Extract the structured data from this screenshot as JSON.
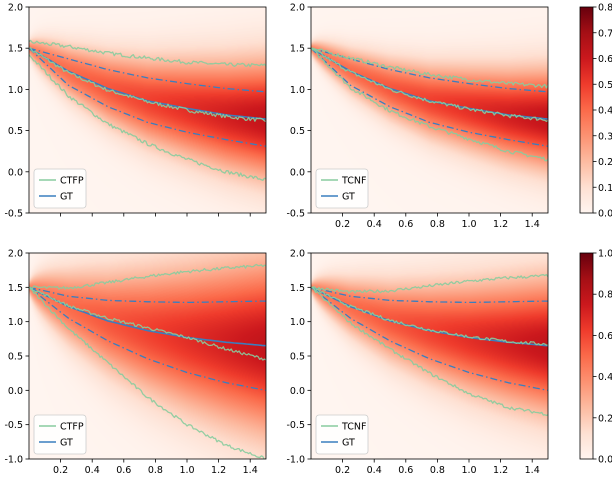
{
  "figure_title": "",
  "chart_data": [
    {
      "type": "line",
      "name": "panel-top-left",
      "xlim": [
        0.0,
        1.5
      ],
      "ylim": [
        -0.5,
        2.0
      ],
      "xticks": [
        0.2,
        0.4,
        0.6,
        0.8,
        1.0,
        1.2,
        1.4
      ],
      "yticks": [
        -0.5,
        0.0,
        0.5,
        1.0,
        1.5,
        2.0
      ],
      "show_xticklabels": false,
      "legend": {
        "position": "lower-left",
        "entries": [
          {
            "label": "CTFP",
            "color": "#88cc9e"
          },
          {
            "label": "GT",
            "color": "#3a7ebf"
          }
        ]
      },
      "density": {
        "center": "gt_mean",
        "sigma0": 0.04,
        "sigma1": 0.48,
        "vmax": 0.8
      },
      "x": [
        0.0,
        0.25,
        0.5,
        0.75,
        1.0,
        1.25,
        1.5
      ],
      "series": [
        {
          "name": "GT",
          "style": "solid",
          "color": "#3a7ebf",
          "values": [
            1.5,
            1.22,
            1.01,
            0.86,
            0.77,
            0.69,
            0.64
          ]
        },
        {
          "name": "GT upper band",
          "style": "dashdot",
          "color": "#3a7ebf",
          "values": [
            1.5,
            1.37,
            1.24,
            1.14,
            1.07,
            1.01,
            0.97
          ]
        },
        {
          "name": "GT lower band",
          "style": "dashdot",
          "color": "#3a7ebf",
          "values": [
            1.5,
            1.05,
            0.79,
            0.6,
            0.48,
            0.39,
            0.31
          ]
        },
        {
          "name": "CTFP",
          "style": "noisy",
          "color": "#88cc9e",
          "values": [
            1.5,
            1.2,
            0.99,
            0.85,
            0.75,
            0.67,
            0.62
          ]
        },
        {
          "name": "CTFP upper",
          "style": "noisy",
          "color": "#88cc9e",
          "values": [
            1.58,
            1.52,
            1.44,
            1.38,
            1.33,
            1.3,
            1.29
          ]
        },
        {
          "name": "CTFP lower",
          "style": "noisy",
          "color": "#88cc9e",
          "values": [
            1.42,
            0.92,
            0.58,
            0.34,
            0.15,
            0.0,
            -0.1
          ]
        }
      ]
    },
    {
      "type": "line",
      "name": "panel-top-right",
      "xlim": [
        0.0,
        1.5
      ],
      "ylim": [
        -0.5,
        2.0
      ],
      "xticks": [
        0.2,
        0.4,
        0.6,
        0.8,
        1.0,
        1.2,
        1.4
      ],
      "yticks": [
        -0.5,
        0.0,
        0.5,
        1.0,
        1.5,
        2.0
      ],
      "show_xticklabels": true,
      "legend": {
        "position": "lower-left",
        "entries": [
          {
            "label": "TCNF",
            "color": "#88cc9e"
          },
          {
            "label": "GT",
            "color": "#3a7ebf"
          }
        ]
      },
      "density": {
        "center": "gt_mean",
        "sigma0": 0.03,
        "sigma1": 0.4,
        "vmax": 0.8
      },
      "x": [
        0.0,
        0.25,
        0.5,
        0.75,
        1.0,
        1.25,
        1.5
      ],
      "series": [
        {
          "name": "GT",
          "style": "solid",
          "color": "#3a7ebf",
          "values": [
            1.5,
            1.22,
            1.01,
            0.86,
            0.77,
            0.69,
            0.64
          ]
        },
        {
          "name": "GT upper band",
          "style": "dashdot",
          "color": "#3a7ebf",
          "values": [
            1.5,
            1.37,
            1.24,
            1.14,
            1.07,
            1.01,
            0.97
          ]
        },
        {
          "name": "GT lower band",
          "style": "dashdot",
          "color": "#3a7ebf",
          "values": [
            1.5,
            1.05,
            0.79,
            0.6,
            0.48,
            0.39,
            0.31
          ]
        },
        {
          "name": "TCNF",
          "style": "noisy",
          "color": "#88cc9e",
          "values": [
            1.5,
            1.21,
            1.0,
            0.86,
            0.76,
            0.68,
            0.63
          ]
        },
        {
          "name": "TCNF upper",
          "style": "noisy",
          "color": "#88cc9e",
          "values": [
            1.5,
            1.38,
            1.27,
            1.18,
            1.12,
            1.07,
            1.04
          ]
        },
        {
          "name": "TCNF lower",
          "style": "noisy",
          "color": "#88cc9e",
          "values": [
            1.5,
            1.02,
            0.74,
            0.55,
            0.4,
            0.25,
            0.15
          ]
        }
      ]
    },
    {
      "type": "line",
      "name": "panel-bottom-left",
      "xlim": [
        0.0,
        1.5
      ],
      "ylim": [
        -1.0,
        2.0
      ],
      "xticks": [
        0.2,
        0.4,
        0.6,
        0.8,
        1.0,
        1.2,
        1.4
      ],
      "yticks": [
        -1.0,
        -0.5,
        0.0,
        0.5,
        1.0,
        1.5,
        2.0
      ],
      "show_xticklabels": true,
      "legend": {
        "position": "lower-left",
        "entries": [
          {
            "label": "CTFP",
            "color": "#88cc9e"
          },
          {
            "label": "GT",
            "color": "#3a7ebf"
          }
        ]
      },
      "density": {
        "center": "gt_mean",
        "sigma0": 0.02,
        "sigma1": 0.85,
        "vmax": 1.0
      },
      "x": [
        0.0,
        0.25,
        0.5,
        0.75,
        1.0,
        1.25,
        1.5
      ],
      "series": [
        {
          "name": "GT",
          "style": "solid",
          "color": "#3a7ebf",
          "values": [
            1.5,
            1.22,
            1.01,
            0.87,
            0.77,
            0.7,
            0.65
          ]
        },
        {
          "name": "GT upper band",
          "style": "dashdot",
          "color": "#3a7ebf",
          "values": [
            1.5,
            1.37,
            1.31,
            1.29,
            1.28,
            1.29,
            1.3
          ]
        },
        {
          "name": "GT lower band",
          "style": "dashdot",
          "color": "#3a7ebf",
          "values": [
            1.5,
            1.05,
            0.72,
            0.46,
            0.26,
            0.11,
            0.0
          ]
        },
        {
          "name": "CTFP",
          "style": "noisy",
          "color": "#88cc9e",
          "values": [
            1.5,
            1.23,
            1.05,
            0.91,
            0.77,
            0.6,
            0.45
          ]
        },
        {
          "name": "CTFP upper",
          "style": "noisy",
          "color": "#88cc9e",
          "values": [
            1.5,
            1.49,
            1.57,
            1.66,
            1.73,
            1.78,
            1.82
          ]
        },
        {
          "name": "CTFP lower",
          "style": "noisy",
          "color": "#88cc9e",
          "values": [
            1.5,
            0.9,
            0.4,
            -0.1,
            -0.5,
            -0.8,
            -1.0
          ]
        }
      ]
    },
    {
      "type": "line",
      "name": "panel-bottom-right",
      "xlim": [
        0.0,
        1.5
      ],
      "ylim": [
        -1.0,
        2.0
      ],
      "xticks": [
        0.2,
        0.4,
        0.6,
        0.8,
        1.0,
        1.2,
        1.4
      ],
      "yticks": [
        -1.0,
        -0.5,
        0.0,
        0.5,
        1.0,
        1.5,
        2.0
      ],
      "show_xticklabels": true,
      "legend": {
        "position": "lower-left",
        "entries": [
          {
            "label": "TCNF",
            "color": "#88cc9e"
          },
          {
            "label": "GT",
            "color": "#3a7ebf"
          }
        ]
      },
      "density": {
        "center": "gt_mean",
        "sigma0": 0.02,
        "sigma1": 0.65,
        "vmax": 1.0
      },
      "x": [
        0.0,
        0.25,
        0.5,
        0.75,
        1.0,
        1.25,
        1.5
      ],
      "series": [
        {
          "name": "GT",
          "style": "solid",
          "color": "#3a7ebf",
          "values": [
            1.5,
            1.22,
            1.01,
            0.87,
            0.77,
            0.7,
            0.65
          ]
        },
        {
          "name": "GT upper band",
          "style": "dashdot",
          "color": "#3a7ebf",
          "values": [
            1.5,
            1.37,
            1.31,
            1.29,
            1.28,
            1.29,
            1.3
          ]
        },
        {
          "name": "GT lower band",
          "style": "dashdot",
          "color": "#3a7ebf",
          "values": [
            1.5,
            1.05,
            0.72,
            0.46,
            0.26,
            0.11,
            0.0
          ]
        },
        {
          "name": "TCNF",
          "style": "noisy",
          "color": "#88cc9e",
          "values": [
            1.5,
            1.22,
            1.02,
            0.88,
            0.78,
            0.71,
            0.67
          ]
        },
        {
          "name": "TCNF upper",
          "style": "noisy",
          "color": "#88cc9e",
          "values": [
            1.5,
            1.43,
            1.45,
            1.52,
            1.59,
            1.64,
            1.67
          ]
        },
        {
          "name": "TCNF lower",
          "style": "noisy",
          "color": "#88cc9e",
          "values": [
            1.5,
            0.98,
            0.6,
            0.25,
            -0.05,
            -0.25,
            -0.35
          ]
        }
      ]
    }
  ],
  "colorbars": [
    {
      "name": "colorbar-top",
      "cmap": "Reds",
      "vmin": 0.0,
      "vmax": 0.8,
      "ticks": [
        "0.0",
        "0.1",
        "0.2",
        "0.3",
        "0.4",
        "0.5",
        "0.6",
        "0.7",
        "0.8"
      ]
    },
    {
      "name": "colorbar-bottom",
      "cmap": "Reds",
      "vmin": 0.0,
      "vmax": 1.0,
      "ticks": [
        "0.0",
        "0.2",
        "0.4",
        "0.6",
        "0.8",
        "1.0"
      ]
    }
  ],
  "colors": {
    "heat_low": "#fff5f0",
    "heat_high": "#67000d",
    "gt_line": "#3a7ebf",
    "model_line": "#88cc9e"
  }
}
